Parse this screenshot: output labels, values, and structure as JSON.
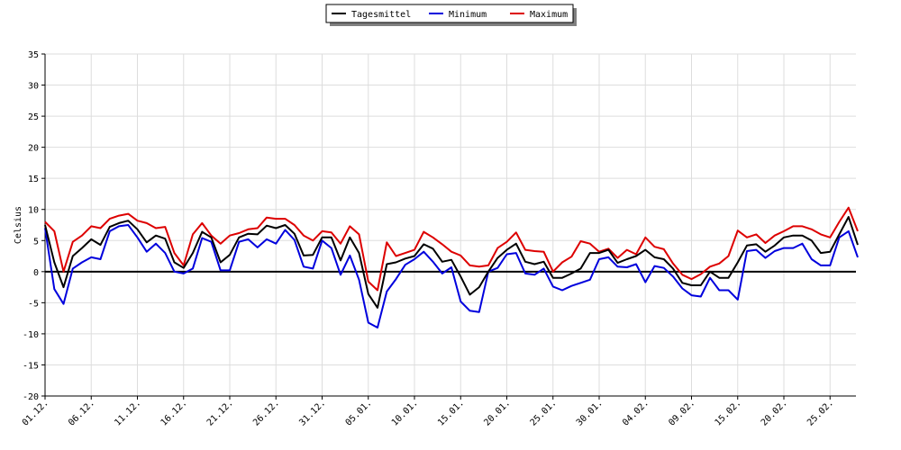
{
  "chart_data": {
    "type": "line",
    "ylabel": "Celsius",
    "ylim": [
      -20,
      35
    ],
    "yticks": [
      -20,
      -15,
      -10,
      -5,
      0,
      5,
      10,
      15,
      20,
      25,
      30,
      35
    ],
    "grid": true,
    "legend_position": "top-center",
    "x_tick_labels": [
      "01.12.",
      "06.12.",
      "11.12.",
      "16.12.",
      "21.12.",
      "26.12.",
      "31.12.",
      "05.01.",
      "10.01.",
      "15.01.",
      "20.01.",
      "25.01.",
      "30.01.",
      "04.02.",
      "09.02.",
      "15.02.",
      "20.02.",
      "25.02."
    ],
    "x_tick_index": [
      0,
      5,
      10,
      15,
      20,
      25,
      30,
      35,
      40,
      45,
      50,
      55,
      60,
      65,
      70,
      75,
      80,
      85
    ],
    "series": [
      {
        "name": "Tagesmittel",
        "color": "#000000",
        "values": [
          7.5,
          1.5,
          -2.5,
          2.5,
          3.8,
          5.2,
          4.3,
          7.2,
          7.8,
          8.2,
          6.8,
          4.7,
          5.8,
          5.3,
          1.5,
          0.6,
          3.0,
          6.4,
          5.5,
          1.5,
          2.7,
          5.5,
          6.1,
          6.0,
          7.4,
          7.0,
          7.5,
          6.1,
          2.6,
          2.7,
          5.5,
          5.5,
          1.8,
          5.5,
          3.0,
          -3.6,
          -5.8,
          1.2,
          1.5,
          2.1,
          2.5,
          4.4,
          3.7,
          1.6,
          1.9,
          -0.8,
          -3.7,
          -2.5,
          0.0,
          2.2,
          3.5,
          4.5,
          1.6,
          1.2,
          1.6,
          -1.0,
          -1.0,
          -0.3,
          0.5,
          3.0,
          3.0,
          3.5,
          1.4,
          2.0,
          2.5,
          3.5,
          2.3,
          2.0,
          0.5,
          -1.8,
          -2.2,
          -2.2,
          0.0,
          -1.0,
          -1.0,
          1.5,
          4.2,
          4.4,
          3.2,
          4.2,
          5.5,
          5.8,
          5.8,
          5.0,
          3.0,
          3.2,
          6.0,
          8.8,
          4.3
        ]
      },
      {
        "name": "Minimum",
        "color": "#0000dd",
        "values": [
          7.0,
          -2.8,
          -5.2,
          0.5,
          1.5,
          2.3,
          2.0,
          6.5,
          7.3,
          7.5,
          5.5,
          3.2,
          4.5,
          3.0,
          0.0,
          -0.3,
          0.5,
          5.4,
          4.8,
          0.2,
          0.2,
          4.8,
          5.2,
          3.9,
          5.2,
          4.5,
          6.7,
          5.1,
          0.8,
          0.5,
          5.0,
          3.8,
          -0.5,
          2.6,
          -1.3,
          -8.2,
          -9.0,
          -3.2,
          -1.2,
          1.1,
          2.0,
          3.2,
          1.6,
          -0.3,
          0.7,
          -4.8,
          -6.3,
          -6.5,
          0.0,
          0.6,
          2.8,
          3.0,
          -0.3,
          -0.5,
          0.5,
          -2.4,
          -3.0,
          -2.3,
          -1.8,
          -1.3,
          2.0,
          2.3,
          0.8,
          0.7,
          1.2,
          -1.7,
          0.9,
          0.6,
          -0.8,
          -2.7,
          -3.8,
          -4.0,
          -1.0,
          -3.0,
          -3.0,
          -4.5,
          3.3,
          3.5,
          2.2,
          3.3,
          3.8,
          3.8,
          4.5,
          2.0,
          1.0,
          1.0,
          5.5,
          6.5,
          2.3
        ]
      },
      {
        "name": "Maximum",
        "color": "#dd0000",
        "values": [
          8.0,
          6.5,
          0.0,
          4.8,
          5.8,
          7.3,
          7.0,
          8.5,
          9.0,
          9.3,
          8.2,
          7.8,
          7.0,
          7.2,
          3.0,
          1.0,
          6.0,
          7.8,
          5.8,
          4.5,
          5.8,
          6.2,
          6.8,
          7.0,
          8.7,
          8.5,
          8.5,
          7.5,
          5.8,
          5.0,
          6.5,
          6.3,
          4.5,
          7.3,
          6.0,
          -1.6,
          -3.0,
          4.7,
          2.5,
          3.0,
          3.5,
          6.4,
          5.5,
          4.4,
          3.2,
          2.6,
          1.0,
          0.8,
          1.0,
          3.8,
          4.8,
          6.3,
          3.5,
          3.3,
          3.2,
          0.0,
          1.5,
          2.4,
          4.9,
          4.5,
          3.2,
          3.7,
          2.2,
          3.5,
          2.8,
          5.5,
          4.0,
          3.6,
          1.3,
          -0.5,
          -1.2,
          -0.4,
          0.8,
          1.3,
          2.5,
          6.6,
          5.5,
          6.0,
          4.6,
          5.8,
          6.5,
          7.3,
          7.3,
          6.8,
          6.0,
          5.5,
          8.0,
          10.3,
          6.5
        ]
      }
    ]
  }
}
